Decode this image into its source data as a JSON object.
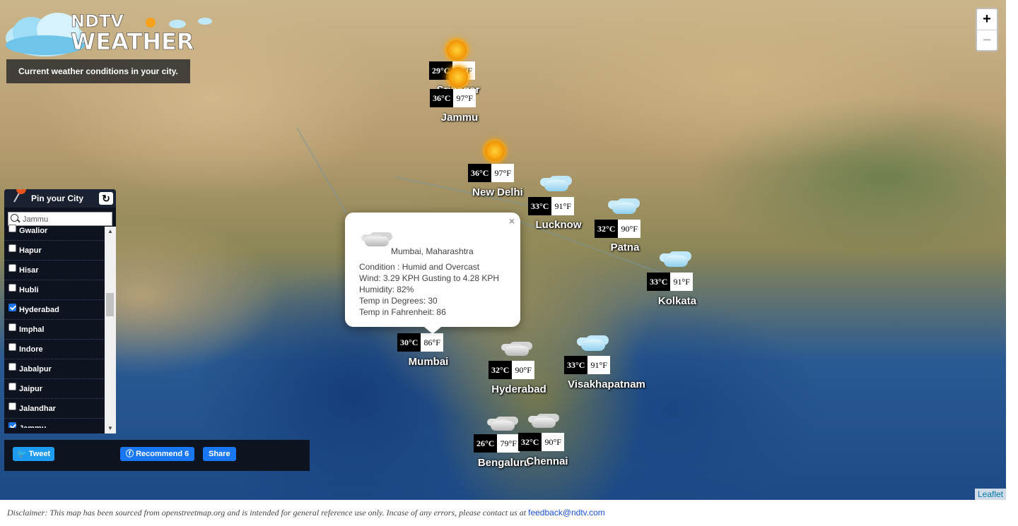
{
  "logo": {
    "brand": "NDTV",
    "product": "WEATHER"
  },
  "tagline": "Current weather conditions in your city.",
  "zoom": {
    "in_label": "+",
    "out_label": "−"
  },
  "pin_panel": {
    "title": "Pin your City",
    "search_value": "Jammu",
    "cities": [
      {
        "name": "Gwalior",
        "checked": false
      },
      {
        "name": "Hapur",
        "checked": false
      },
      {
        "name": "Hisar",
        "checked": false
      },
      {
        "name": "Hubli",
        "checked": false
      },
      {
        "name": "Hyderabad",
        "checked": true
      },
      {
        "name": "Imphal",
        "checked": false
      },
      {
        "name": "Indore",
        "checked": false
      },
      {
        "name": "Jabalpur",
        "checked": false
      },
      {
        "name": "Jaipur",
        "checked": false
      },
      {
        "name": "Jalandhar",
        "checked": false
      },
      {
        "name": "Jammu",
        "checked": true
      }
    ]
  },
  "social": {
    "tweet_label": "Tweet",
    "recommend_label": "Recommend 6",
    "share_label": "Share"
  },
  "markers": [
    {
      "city": "Srinagar",
      "temp_c": "29°C",
      "temp_f": "84°F",
      "icon": "sun-icon"
    },
    {
      "city": "Jammu",
      "temp_c": "36°C",
      "temp_f": "97°F",
      "icon": "sun-icon"
    },
    {
      "city": "New Delhi",
      "temp_c": "36°C",
      "temp_f": "97°F",
      "icon": "sun-icon"
    },
    {
      "city": "Lucknow",
      "temp_c": "33°C",
      "temp_f": "91°F",
      "icon": "cloud-icon"
    },
    {
      "city": "Patna",
      "temp_c": "32°C",
      "temp_f": "90°F",
      "icon": "cloud-icon"
    },
    {
      "city": "Kolkata",
      "temp_c": "33°C",
      "temp_f": "91°F",
      "icon": "cloud-icon"
    },
    {
      "city": "Mumbai",
      "temp_c": "30°C",
      "temp_f": "86°F",
      "icon": "overcast-icon"
    },
    {
      "city": "Hyderabad",
      "temp_c": "32°C",
      "temp_f": "90°F",
      "icon": "overcast-icon"
    },
    {
      "city": "Visakhapatnam",
      "temp_c": "33°C",
      "temp_f": "91°F",
      "icon": "cloud-icon"
    },
    {
      "city": "Bengaluru",
      "temp_c": "26°C",
      "temp_f": "79°F",
      "icon": "overcast-icon"
    },
    {
      "city": "Chennai",
      "temp_c": "32°C",
      "temp_f": "90°F",
      "icon": "overcast-icon"
    }
  ],
  "popup": {
    "place": "Mumbai, Maharashtra",
    "condition": "Condition : Humid and Overcast",
    "wind": "Wind: 3.29 KPH Gusting to 4.28 KPH",
    "humidity": "Humidity: 82%",
    "temp_deg": "Temp in Degrees: 30",
    "temp_f": "Temp in Fahrenheit: 86",
    "close_label": "×"
  },
  "attribution": "Leaflet",
  "disclaimer": {
    "text": "Disclaimer: This map has been sourced from openstreetmap.org and is intended for general reference use only. Incase of any errors, please contact us at ",
    "email": "feedback@ndtv.com"
  }
}
